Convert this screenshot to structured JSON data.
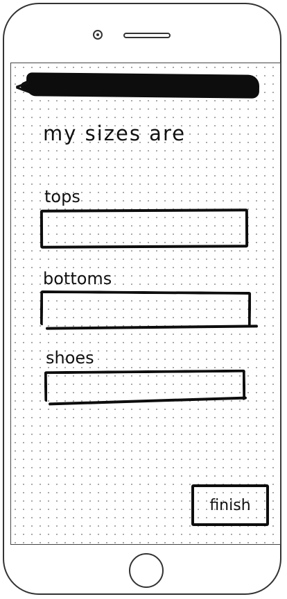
{
  "screen": {
    "back_icon": "back-arrow-icon",
    "heading": "my sizes are",
    "fields": {
      "tops": {
        "label": "tops",
        "value": ""
      },
      "bottoms": {
        "label": "bottoms",
        "value": ""
      },
      "shoes": {
        "label": "shoes",
        "value": ""
      }
    },
    "finish_label": "finish"
  },
  "colors": {
    "ink": "#0d0d0d",
    "grid_dot": "#9a9a9a",
    "frame": "#333333"
  }
}
